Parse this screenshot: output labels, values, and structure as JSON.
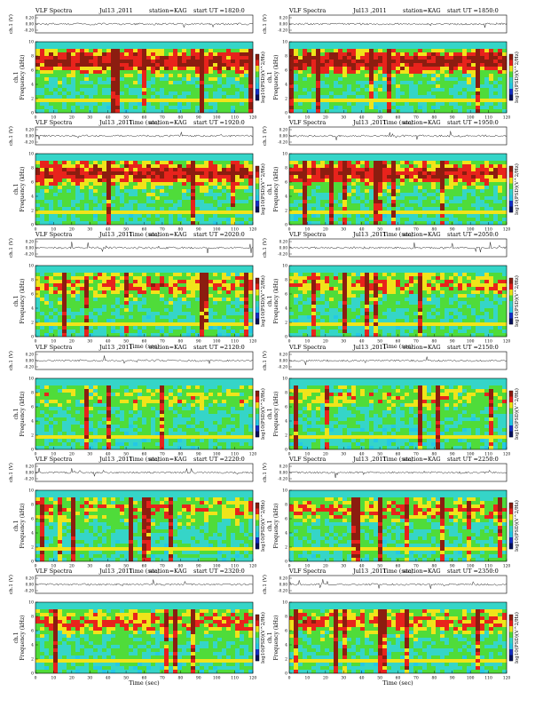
{
  "figure": {
    "plot_title": "VLF Spectra",
    "station_label": "station=KAG",
    "start_label": "start  UT",
    "waveform_ylabel": "ch.1 (V)",
    "spec_ylabel_channel": "ch.1",
    "spec_ylabel_freq": "Frequency  (kHz)",
    "colorbar_label": "log10(PSD)(V^2/Hz)",
    "xlabel": "Time  (sec)"
  },
  "chart_data": [
    {
      "type": "heatmap",
      "date": "Jul13 ,2011",
      "start_ut": "=1820:0",
      "xlim": [
        0,
        120
      ],
      "ylim": [
        0,
        10
      ],
      "activity": 0.88,
      "wave_ticks": [
        "0.20",
        "0.00",
        "-0.20"
      ]
    },
    {
      "type": "heatmap",
      "date": "Jul13 ,2011",
      "start_ut": "=1850:0",
      "xlim": [
        0,
        120
      ],
      "ylim": [
        0,
        10
      ],
      "activity": 0.86,
      "wave_ticks": [
        "0.20",
        "0.00",
        "-0.20"
      ]
    },
    {
      "type": "heatmap",
      "date": "Jul13 ,2011",
      "start_ut": "=1920:0",
      "xlim": [
        0,
        120
      ],
      "ylim": [
        0,
        10
      ],
      "activity": 0.82,
      "wave_ticks": [
        "0.20",
        "0.00",
        "-0.20"
      ]
    },
    {
      "type": "heatmap",
      "date": "Jul13 ,2011",
      "start_ut": "=1950:0",
      "xlim": [
        0,
        120
      ],
      "ylim": [
        0,
        10
      ],
      "activity": 0.78,
      "wave_ticks": [
        "0.20",
        "0.00",
        "-0.20"
      ]
    },
    {
      "type": "heatmap",
      "date": "Jul13 ,2011",
      "start_ut": "=2020:0",
      "xlim": [
        0,
        120
      ],
      "ylim": [
        0,
        10
      ],
      "activity": 0.58,
      "wave_ticks": [
        "0.20",
        "0.00",
        "-0.20"
      ]
    },
    {
      "type": "heatmap",
      "date": "Jul13 ,2011",
      "start_ut": "=2050:0",
      "xlim": [
        0,
        120
      ],
      "ylim": [
        0,
        10
      ],
      "activity": 0.5,
      "wave_ticks": [
        "0.20",
        "0.00",
        "-0.20"
      ]
    },
    {
      "type": "heatmap",
      "date": "Jul13 ,2011",
      "start_ut": "=2120:0",
      "xlim": [
        0,
        120
      ],
      "ylim": [
        0,
        10
      ],
      "activity": 0.32,
      "wave_ticks": [
        "0.20",
        "0.00",
        "-0.20"
      ]
    },
    {
      "type": "heatmap",
      "date": "Jul13 ,2011",
      "start_ut": "=2150:0",
      "xlim": [
        0,
        120
      ],
      "ylim": [
        0,
        10
      ],
      "activity": 0.36,
      "wave_ticks": [
        "0.20",
        "0.00",
        "-0.20"
      ]
    },
    {
      "type": "heatmap",
      "date": "Jul13 ,2011",
      "start_ut": "=2220:0",
      "xlim": [
        0,
        120
      ],
      "ylim": [
        0,
        10
      ],
      "activity": 0.45,
      "wave_ticks": [
        "0.20",
        "0.00",
        "-0.20"
      ]
    },
    {
      "type": "heatmap",
      "date": "Jul13 ,2011",
      "start_ut": "=2250:0",
      "xlim": [
        0,
        120
      ],
      "ylim": [
        0,
        10
      ],
      "activity": 0.5,
      "wave_ticks": [
        "0.20",
        "0.00",
        "-0.20"
      ]
    },
    {
      "type": "heatmap",
      "date": "Jul13 ,2011",
      "start_ut": "=2320:0",
      "xlim": [
        0,
        120
      ],
      "ylim": [
        0,
        10
      ],
      "activity": 0.55,
      "wave_ticks": [
        "0.20",
        "0.00",
        "-0.20"
      ]
    },
    {
      "type": "heatmap",
      "date": "Jul13 ,2011",
      "start_ut": "=2350:0",
      "xlim": [
        0,
        120
      ],
      "ylim": [
        0,
        10
      ],
      "activity": 0.58,
      "wave_ticks": [
        "0.20",
        "0.00",
        "-0.20"
      ]
    }
  ],
  "xticks": [
    "0",
    "10",
    "20",
    "30",
    "40",
    "50",
    "60",
    "70",
    "80",
    "90",
    "100",
    "110",
    "120"
  ],
  "yticks": [
    "0",
    "2",
    "4",
    "6",
    "8",
    "10"
  ],
  "colors": {
    "hot": "#e8231c",
    "warm": "#f0e41a",
    "mid": "#4fdc3a",
    "cool": "#35d5c8",
    "cold": "#25c8e6",
    "dark": "#8c1d10",
    "axis": "#000000"
  }
}
